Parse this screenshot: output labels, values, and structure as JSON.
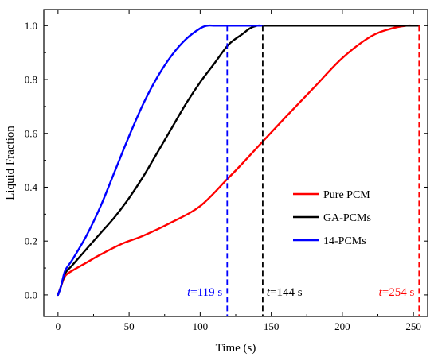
{
  "chart_data": {
    "type": "line",
    "xlabel": "Time (s)",
    "ylabel": "Liquid Fraction",
    "xlim": [
      -10,
      260
    ],
    "ylim": [
      -0.08,
      1.06
    ],
    "xticks": [
      0,
      50,
      100,
      150,
      200,
      250
    ],
    "yticks": [
      0.0,
      0.2,
      0.4,
      0.6,
      0.8,
      1.0
    ],
    "ytick_labels": [
      "0.0",
      "0.2",
      "0.4",
      "0.6",
      "0.8",
      "1.0"
    ],
    "grid": false,
    "legend_position": "center-right",
    "series": [
      {
        "name": "Pure PCM",
        "color": "#ff0000",
        "x": [
          0,
          2,
          5,
          10,
          20,
          30,
          45,
          60,
          80,
          100,
          119,
          130,
          144,
          160,
          180,
          200,
          220,
          235,
          245,
          250,
          254
        ],
        "y": [
          0.0,
          0.03,
          0.07,
          0.09,
          0.12,
          0.15,
          0.19,
          0.22,
          0.27,
          0.33,
          0.43,
          0.49,
          0.57,
          0.66,
          0.77,
          0.88,
          0.96,
          0.99,
          1.0,
          1.0,
          1.0
        ]
      },
      {
        "name": "GA-PCMs",
        "color": "#000000",
        "x": [
          0,
          2,
          5,
          10,
          20,
          30,
          40,
          50,
          60,
          70,
          80,
          90,
          100,
          110,
          120,
          130,
          135,
          140,
          144,
          150,
          200,
          254
        ],
        "y": [
          0.0,
          0.03,
          0.08,
          0.11,
          0.17,
          0.23,
          0.29,
          0.36,
          0.44,
          0.53,
          0.62,
          0.71,
          0.79,
          0.86,
          0.93,
          0.97,
          0.99,
          1.0,
          1.0,
          1.0,
          1.0,
          1.0
        ]
      },
      {
        "name": "14-PCMs",
        "color": "#0000ff",
        "x": [
          0,
          2,
          5,
          10,
          20,
          30,
          40,
          50,
          60,
          70,
          80,
          90,
          100,
          105,
          110,
          115,
          119,
          130,
          144
        ],
        "y": [
          0.0,
          0.03,
          0.09,
          0.13,
          0.22,
          0.33,
          0.46,
          0.59,
          0.71,
          0.81,
          0.89,
          0.95,
          0.99,
          1.0,
          1.0,
          1.0,
          1.0,
          1.0,
          1.0
        ]
      }
    ],
    "annotations": [
      {
        "t": 119,
        "italic": "t",
        "text": "=119 s",
        "color": "#0000ff"
      },
      {
        "t": 144,
        "italic": "t",
        "text": "=144 s",
        "color": "#000000"
      },
      {
        "t": 254,
        "italic": "t",
        "text": "=254 s",
        "color": "#ff0000"
      }
    ]
  }
}
